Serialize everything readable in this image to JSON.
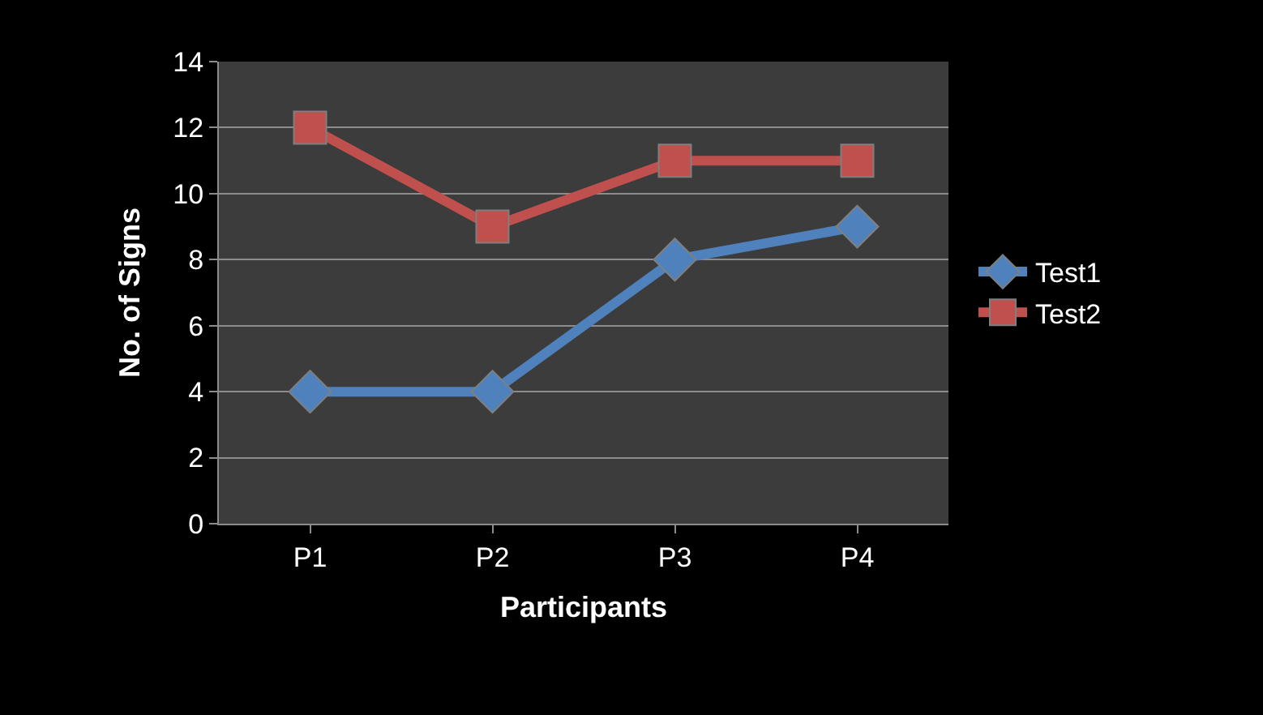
{
  "chart_data": {
    "type": "line",
    "xlabel": "Participants",
    "ylabel": "No. of Signs",
    "categories": [
      "P1",
      "P2",
      "P3",
      "P4"
    ],
    "series": [
      {
        "name": "Test1",
        "color": "#4f81bd",
        "values": [
          4,
          4,
          8,
          9
        ],
        "marker": "diamond"
      },
      {
        "name": "Test2",
        "color": "#c0504d",
        "values": [
          12,
          9,
          11,
          11
        ],
        "marker": "square"
      }
    ],
    "ylim": [
      0,
      14
    ],
    "yticks": [
      0,
      2,
      4,
      6,
      8,
      10,
      12,
      14
    ],
    "grid": "y",
    "legend": "right",
    "line_style": "solid"
  }
}
